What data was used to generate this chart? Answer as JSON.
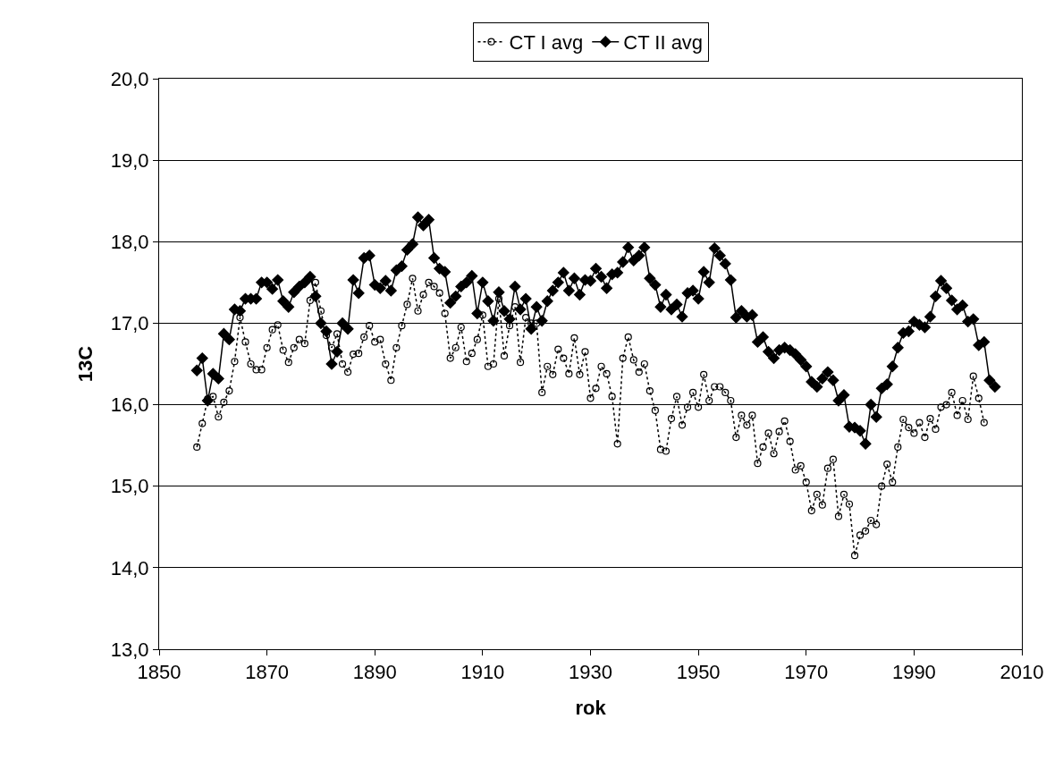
{
  "chart_data": {
    "type": "line",
    "xlabel": "rok",
    "ylabel": "13C",
    "xlim": [
      1850,
      2010
    ],
    "xticks": [
      1850,
      1870,
      1890,
      1910,
      1930,
      1950,
      1970,
      1990,
      2010
    ],
    "ylim": [
      13,
      20
    ],
    "yticks": [
      {
        "value": 13,
        "label": "13,0"
      },
      {
        "value": 14,
        "label": "14,0"
      },
      {
        "value": 15,
        "label": "15,0"
      },
      {
        "value": 16,
        "label": "16,0"
      },
      {
        "value": 17,
        "label": "17,0"
      },
      {
        "value": 18,
        "label": "18,0"
      },
      {
        "value": 19,
        "label": "19,0"
      },
      {
        "value": 20,
        "label": "20,0"
      }
    ],
    "grid": "y",
    "legend": "top",
    "x": [
      1857,
      1858,
      1859,
      1860,
      1861,
      1862,
      1863,
      1864,
      1865,
      1866,
      1867,
      1868,
      1869,
      1870,
      1871,
      1872,
      1873,
      1874,
      1875,
      1876,
      1877,
      1878,
      1879,
      1880,
      1881,
      1882,
      1883,
      1884,
      1885,
      1886,
      1887,
      1888,
      1889,
      1890,
      1891,
      1892,
      1893,
      1894,
      1895,
      1896,
      1897,
      1898,
      1899,
      1900,
      1901,
      1902,
      1903,
      1904,
      1905,
      1906,
      1907,
      1908,
      1909,
      1910,
      1911,
      1912,
      1913,
      1914,
      1915,
      1916,
      1917,
      1918,
      1919,
      1920,
      1921,
      1922,
      1923,
      1924,
      1925,
      1926,
      1927,
      1928,
      1929,
      1930,
      1931,
      1932,
      1933,
      1934,
      1935,
      1936,
      1937,
      1938,
      1939,
      1940,
      1941,
      1942,
      1943,
      1944,
      1945,
      1946,
      1947,
      1948,
      1949,
      1950,
      1951,
      1952,
      1953,
      1954,
      1955,
      1956,
      1957,
      1958,
      1959,
      1960,
      1961,
      1962,
      1963,
      1964,
      1965,
      1966,
      1967,
      1968,
      1969,
      1970,
      1971,
      1972,
      1973,
      1974,
      1975,
      1976,
      1977,
      1978,
      1979,
      1980,
      1981,
      1982,
      1983,
      1984,
      1985,
      1986,
      1987,
      1988,
      1989,
      1990,
      1991,
      1992,
      1993,
      1994,
      1995,
      1996,
      1997,
      1998,
      1999,
      2000,
      2001,
      2002,
      2003,
      2004,
      2005
    ],
    "series": [
      {
        "name": "CT I avg",
        "color": "#000000",
        "marker": "circle",
        "line_style": "dotted",
        "x": [
          1857,
          1858,
          1859,
          1860,
          1861,
          1862,
          1863,
          1864,
          1865,
          1866,
          1867,
          1868,
          1869,
          1870,
          1871,
          1872,
          1873,
          1874,
          1875,
          1876,
          1877,
          1878,
          1879,
          1880,
          1881,
          1882,
          1883,
          1884,
          1885,
          1886,
          1887,
          1888,
          1889,
          1890,
          1891,
          1892,
          1893,
          1894,
          1895,
          1896,
          1897,
          1898,
          1899,
          1900,
          1901,
          1902,
          1903,
          1904,
          1905,
          1906,
          1907,
          1908,
          1909,
          1910,
          1911,
          1912,
          1913,
          1914,
          1915,
          1916,
          1917,
          1918,
          1919,
          1920,
          1921,
          1922,
          1923,
          1924,
          1925,
          1926,
          1927,
          1928,
          1929,
          1930,
          1931,
          1932,
          1933,
          1934,
          1935,
          1936,
          1937,
          1938,
          1939,
          1940,
          1941,
          1942,
          1943,
          1944,
          1945,
          1946,
          1947,
          1948,
          1949,
          1950,
          1951,
          1952,
          1953,
          1954,
          1955,
          1956,
          1957,
          1958,
          1959,
          1960,
          1961,
          1962,
          1963,
          1964,
          1965,
          1966,
          1967,
          1968,
          1969,
          1970,
          1971,
          1972,
          1973,
          1974,
          1975,
          1976,
          1977,
          1978,
          1979,
          1980,
          1981,
          1982,
          1983,
          1984,
          1985,
          1986,
          1987,
          1988,
          1989,
          1990,
          1991,
          1992,
          1993,
          1994,
          1995,
          1996,
          1997,
          1998,
          1999,
          2000,
          2001,
          2002,
          2003
        ],
        "values": [
          15.48,
          15.77,
          16.07,
          16.1,
          15.85,
          16.03,
          16.17,
          16.53,
          17.07,
          16.77,
          16.5,
          16.43,
          16.43,
          16.7,
          16.92,
          16.98,
          16.67,
          16.52,
          16.7,
          16.8,
          16.75,
          17.28,
          17.5,
          17.15,
          16.85,
          16.7,
          16.87,
          16.5,
          16.4,
          16.62,
          16.63,
          16.83,
          16.97,
          16.77,
          16.8,
          16.5,
          16.3,
          16.7,
          16.97,
          17.23,
          17.55,
          17.15,
          17.35,
          17.5,
          17.45,
          17.37,
          17.12,
          16.57,
          16.7,
          16.95,
          16.53,
          16.63,
          16.8,
          17.1,
          16.47,
          16.5,
          17.3,
          16.6,
          16.97,
          17.2,
          16.52,
          17.07,
          17.0,
          17.0,
          16.15,
          16.47,
          16.37,
          16.68,
          16.57,
          16.38,
          16.82,
          16.37,
          16.65,
          16.08,
          16.2,
          16.47,
          16.38,
          16.1,
          15.52,
          16.57,
          16.83,
          16.55,
          16.4,
          16.5,
          16.17,
          15.93,
          15.45,
          15.43,
          15.83,
          16.1,
          15.75,
          15.97,
          16.15,
          15.97,
          16.37,
          16.05,
          16.22,
          16.22,
          16.15,
          16.05,
          15.6,
          15.87,
          15.75,
          15.87,
          15.28,
          15.48,
          15.65,
          15.4,
          15.67,
          15.8,
          15.55,
          15.2,
          15.25,
          15.05,
          14.7,
          14.9,
          14.77,
          15.22,
          15.33,
          14.63,
          14.9,
          14.78,
          14.15,
          14.4,
          14.45,
          14.58,
          14.53,
          15.0,
          15.27,
          15.05,
          15.48,
          15.82,
          15.72,
          15.65,
          15.78,
          15.6,
          15.83,
          15.7,
          15.97,
          16.0,
          16.15,
          15.87,
          16.05,
          15.82,
          16.35,
          16.08,
          15.78
        ]
      },
      {
        "name": "CT II avg",
        "color": "#000000",
        "marker": "diamond",
        "line_style": "solid",
        "values": [
          16.42,
          16.57,
          16.05,
          16.38,
          16.32,
          16.87,
          16.8,
          17.17,
          17.15,
          17.3,
          17.3,
          17.3,
          17.5,
          17.5,
          17.42,
          17.53,
          17.27,
          17.2,
          17.38,
          17.45,
          17.5,
          17.57,
          17.33,
          17.0,
          16.9,
          16.5,
          16.65,
          17.0,
          16.93,
          17.53,
          17.37,
          17.8,
          17.83,
          17.47,
          17.43,
          17.52,
          17.4,
          17.65,
          17.7,
          17.9,
          17.97,
          18.3,
          18.2,
          18.27,
          17.8,
          17.67,
          17.63,
          17.25,
          17.33,
          17.45,
          17.5,
          17.58,
          17.12,
          17.5,
          17.27,
          17.03,
          17.38,
          17.15,
          17.05,
          17.45,
          17.17,
          17.3,
          16.93,
          17.2,
          17.03,
          17.27,
          17.4,
          17.5,
          17.62,
          17.4,
          17.55,
          17.35,
          17.53,
          17.52,
          17.67,
          17.57,
          17.43,
          17.6,
          17.62,
          17.75,
          17.93,
          17.77,
          17.83,
          17.93,
          17.55,
          17.47,
          17.2,
          17.35,
          17.17,
          17.23,
          17.08,
          17.37,
          17.4,
          17.3,
          17.63,
          17.5,
          17.92,
          17.83,
          17.73,
          17.53,
          17.07,
          17.15,
          17.08,
          17.1,
          16.77,
          16.83,
          16.65,
          16.57,
          16.67,
          16.7,
          16.67,
          16.62,
          16.55,
          16.47,
          16.28,
          16.22,
          16.32,
          16.4,
          16.3,
          16.05,
          16.12,
          15.73,
          15.72,
          15.68,
          15.52,
          16.0,
          15.85,
          16.2,
          16.25,
          16.47,
          16.7,
          16.88,
          16.9,
          17.02,
          16.98,
          16.95,
          17.08,
          17.33,
          17.52,
          17.43,
          17.28,
          17.17,
          17.22,
          17.02,
          17.05,
          16.73,
          16.77,
          16.3,
          16.22
        ]
      }
    ]
  }
}
